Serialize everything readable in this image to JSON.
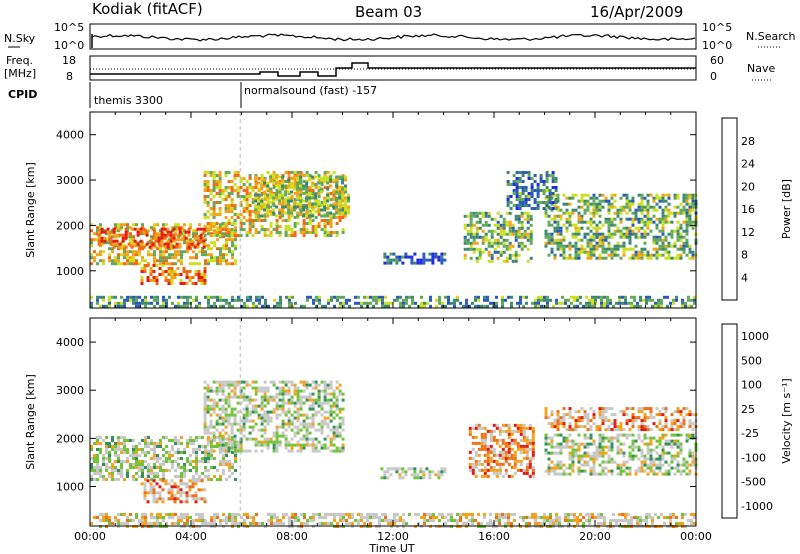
{
  "header": {
    "station": "Kodiak (fitACF)",
    "beam": "Beam 03",
    "date": "16/Apr/2009"
  },
  "top_panel": {
    "nsky_label": "N.Sky",
    "nsky_ticks": [
      "10^5",
      "10^0"
    ],
    "nsearch_label": "N.Search",
    "nsearch_ticks": [
      "10^5",
      "10^0"
    ]
  },
  "freq_panel": {
    "freq_label_1": "Freq.",
    "freq_label_2": "[MHz]",
    "freq_ticks": [
      "18",
      "8"
    ],
    "nave_label": "Nave",
    "nave_ticks": [
      "60",
      "0"
    ]
  },
  "cpid_panel": {
    "label": "CPID",
    "program_1": "themis 3300",
    "program_2": "normalsound (fast) -157"
  },
  "chart_data": [
    {
      "type": "heatmap",
      "title": "",
      "ylabel": "Slant Range [km]",
      "xlabel": "",
      "ylim": [
        180,
        4500
      ],
      "yticks": [
        "1000",
        "2000",
        "3000",
        "4000"
      ],
      "colorbar_label": "Power [dB]",
      "colorbar_ticks": [
        "4",
        "8",
        "12",
        "16",
        "20",
        "24",
        "28"
      ],
      "colorbar_colors": [
        "#1e28e6",
        "#2a5bb8",
        "#3d8870",
        "#61a85a",
        "#cde01f",
        "#f5a21b",
        "#ee6a15",
        "#e21a12"
      ],
      "regions": [
        {
          "t0": 0.0,
          "t1": 5.8,
          "r0": 1150,
          "r1": 2050,
          "level": 0.6
        },
        {
          "t0": 0.3,
          "t1": 4.5,
          "r0": 1500,
          "r1": 1950,
          "level": 0.85
        },
        {
          "t0": 2.0,
          "t1": 4.5,
          "r0": 700,
          "r1": 1150,
          "level": 0.8
        },
        {
          "t0": 4.5,
          "t1": 10.0,
          "r0": 1750,
          "r1": 3200,
          "level": 0.6
        },
        {
          "t0": 6.5,
          "t1": 10.3,
          "r0": 2200,
          "r1": 3100,
          "level": 0.5
        },
        {
          "t0": 11.5,
          "t1": 14.0,
          "r0": 1200,
          "r1": 1400,
          "level": 0.2
        },
        {
          "t0": 14.8,
          "t1": 17.5,
          "r0": 1200,
          "r1": 2300,
          "level": 0.45
        },
        {
          "t0": 18.0,
          "t1": 24.0,
          "r0": 1250,
          "r1": 2700,
          "level": 0.45
        },
        {
          "t0": 16.5,
          "t1": 18.5,
          "r0": 2400,
          "r1": 3200,
          "level": 0.3
        },
        {
          "t0": 0.0,
          "t1": 24.0,
          "r0": 200,
          "r1": 450,
          "level": 0.35
        }
      ]
    },
    {
      "type": "heatmap",
      "title": "",
      "ylabel": "Slant Range [km]",
      "xlabel": "Time UT",
      "ylim": [
        180,
        4500
      ],
      "yticks": [
        "1000",
        "2000",
        "3000",
        "4000"
      ],
      "xticks": [
        "00:00",
        "04:00",
        "08:00",
        "12:00",
        "16:00",
        "20:00",
        "00:00"
      ],
      "colorbar_label": "Velocity [m s⁻¹]",
      "colorbar_ticks": [
        "1000",
        "500",
        "100",
        "25",
        "-25",
        "-100",
        "-500",
        "-1000"
      ],
      "colorbar_colors": [
        "#1e28e6",
        "#2d6bb0",
        "#35905a",
        "#71c43a",
        "#c8c8c8",
        "#c8c8c8",
        "#f5a21b",
        "#ee7116",
        "#e21a12"
      ],
      "regions": [
        {
          "t0": 0.0,
          "t1": 5.8,
          "r0": 1150,
          "r1": 2050,
          "level": 0.5
        },
        {
          "t0": 2.0,
          "t1": 4.5,
          "r0": 700,
          "r1": 1150,
          "level": 0.72
        },
        {
          "t0": 4.5,
          "t1": 10.0,
          "r0": 1750,
          "r1": 3200,
          "level": 0.5
        },
        {
          "t0": 11.5,
          "t1": 14.0,
          "r0": 1200,
          "r1": 1400,
          "level": 0.5
        },
        {
          "t0": 15.0,
          "t1": 17.5,
          "r0": 1200,
          "r1": 2300,
          "level": 0.75
        },
        {
          "t0": 18.0,
          "t1": 24.0,
          "r0": 2200,
          "r1": 2650,
          "level": 0.72
        },
        {
          "t0": 18.0,
          "t1": 24.0,
          "r0": 1250,
          "r1": 2100,
          "level": 0.5
        },
        {
          "t0": 0.0,
          "t1": 24.0,
          "r0": 200,
          "r1": 450,
          "level": 0.6
        }
      ]
    }
  ]
}
